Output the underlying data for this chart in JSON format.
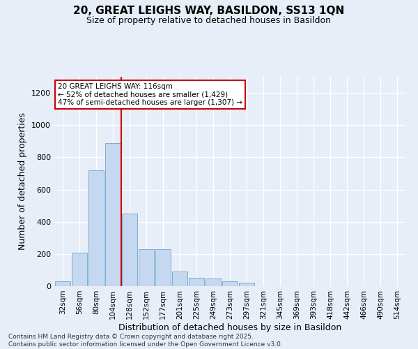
{
  "title": "20, GREAT LEIGHS WAY, BASILDON, SS13 1QN",
  "subtitle": "Size of property relative to detached houses in Basildon",
  "xlabel": "Distribution of detached houses by size in Basildon",
  "ylabel": "Number of detached properties",
  "categories": [
    "32sqm",
    "56sqm",
    "80sqm",
    "104sqm",
    "128sqm",
    "152sqm",
    "177sqm",
    "201sqm",
    "225sqm",
    "249sqm",
    "273sqm",
    "297sqm",
    "321sqm",
    "345sqm",
    "369sqm",
    "393sqm",
    "418sqm",
    "442sqm",
    "466sqm",
    "490sqm",
    "514sqm"
  ],
  "values": [
    30,
    210,
    720,
    890,
    450,
    230,
    230,
    90,
    50,
    48,
    30,
    20,
    0,
    0,
    0,
    0,
    0,
    0,
    0,
    0,
    0
  ],
  "bar_color": "#c5d8f0",
  "bar_edge_color": "#7aadd4",
  "background_color": "#e8eef8",
  "grid_color": "#ffffff",
  "property_label": "20 GREAT LEIGHS WAY: 116sqm",
  "annotation_line1": "← 52% of detached houses are smaller (1,429)",
  "annotation_line2": "47% of semi-detached houses are larger (1,307) →",
  "annotation_box_facecolor": "#ffffff",
  "annotation_box_edgecolor": "#cc0000",
  "vline_color": "#cc0000",
  "ylim": [
    0,
    1300
  ],
  "yticks": [
    0,
    200,
    400,
    600,
    800,
    1000,
    1200
  ],
  "footer_line1": "Contains HM Land Registry data © Crown copyright and database right 2025.",
  "footer_line2": "Contains public sector information licensed under the Open Government Licence v3.0."
}
